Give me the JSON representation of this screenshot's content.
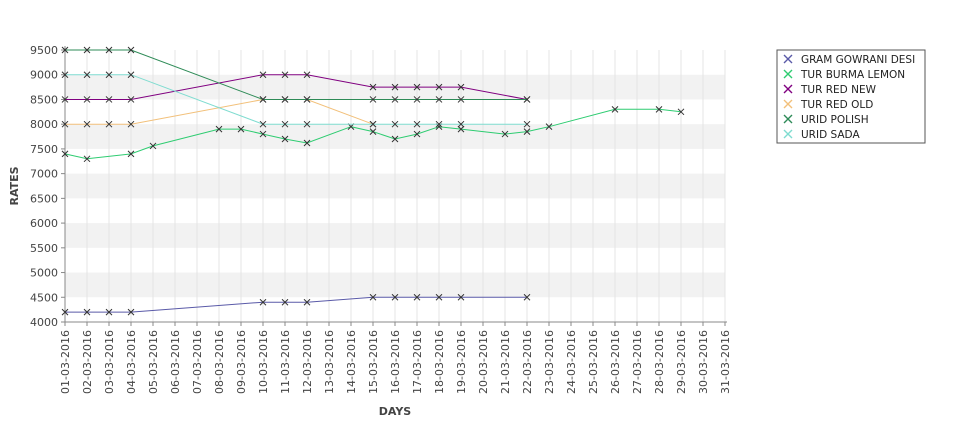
{
  "chart_data": {
    "type": "line",
    "title": "",
    "xlabel": "DAYS",
    "ylabel": "RATES",
    "ylim": [
      4000,
      9500
    ],
    "yticks": [
      4000,
      4500,
      5000,
      5500,
      6000,
      6500,
      7000,
      7500,
      8000,
      8500,
      9000,
      9500
    ],
    "grid": "alternating horizontal bands",
    "legend_position": "top-right",
    "categories": [
      "01-03-2016",
      "02-03-2016",
      "03-03-2016",
      "04-03-2016",
      "05-03-2016",
      "06-03-2016",
      "07-03-2016",
      "08-03-2016",
      "09-03-2016",
      "10-03-2016",
      "11-03-2016",
      "12-03-2016",
      "13-03-2016",
      "14-03-2016",
      "15-03-2016",
      "16-03-2016",
      "17-03-2016",
      "18-03-2016",
      "19-03-2016",
      "20-03-2016",
      "21-03-2016",
      "22-03-2016",
      "23-03-2016",
      "24-03-2016",
      "25-03-2016",
      "26-03-2016",
      "27-03-2016",
      "28-03-2016",
      "29-03-2016",
      "30-03-2016",
      "31-03-2016"
    ],
    "series": [
      {
        "name": "GRAM GOWRANI DESI",
        "color": "#5a5aa8",
        "values": [
          4200,
          4200,
          4200,
          4200,
          null,
          null,
          null,
          null,
          null,
          4400,
          4400,
          4400,
          null,
          null,
          4500,
          4500,
          4500,
          4500,
          4500,
          null,
          null,
          4500,
          null,
          null,
          null,
          null,
          null,
          null,
          null,
          null,
          null
        ]
      },
      {
        "name": "TUR BURMA LEMON",
        "color": "#2ecc71",
        "values": [
          7400,
          7300,
          null,
          7400,
          7560,
          null,
          null,
          7900,
          7900,
          7800,
          7700,
          7620,
          null,
          7950,
          7850,
          7700,
          7800,
          7950,
          7900,
          null,
          7800,
          7850,
          7950,
          null,
          null,
          8300,
          null,
          8300,
          8250,
          null,
          null
        ]
      },
      {
        "name": "TUR RED NEW",
        "color": "#800080",
        "values": [
          8500,
          8500,
          8500,
          8500,
          null,
          null,
          null,
          null,
          null,
          9000,
          9000,
          9000,
          null,
          null,
          8750,
          8750,
          8750,
          8750,
          8750,
          null,
          null,
          8500,
          null,
          null,
          null,
          null,
          null,
          null,
          null,
          null,
          null
        ]
      },
      {
        "name": "TUR RED OLD",
        "color": "#f2c07a",
        "values": [
          8000,
          8000,
          8000,
          8000,
          null,
          null,
          null,
          null,
          null,
          8500,
          8500,
          8500,
          null,
          null,
          8000,
          null,
          null,
          null,
          null,
          null,
          null,
          null,
          null,
          null,
          null,
          null,
          null,
          null,
          null,
          null,
          null
        ]
      },
      {
        "name": "URID POLISH",
        "color": "#2e8b57",
        "values": [
          9500,
          9500,
          9500,
          9500,
          null,
          null,
          null,
          null,
          null,
          8500,
          8500,
          8500,
          null,
          null,
          8500,
          8500,
          8500,
          8500,
          8500,
          null,
          null,
          8500,
          null,
          null,
          null,
          null,
          null,
          null,
          null,
          null,
          null
        ]
      },
      {
        "name": "URID SADA",
        "color": "#7fdcd0",
        "values": [
          9000,
          9000,
          9000,
          9000,
          null,
          null,
          null,
          null,
          null,
          8000,
          8000,
          8000,
          null,
          null,
          8000,
          8000,
          8000,
          8000,
          8000,
          null,
          null,
          8000,
          null,
          null,
          null,
          null,
          null,
          null,
          null,
          null,
          null
        ]
      }
    ]
  }
}
